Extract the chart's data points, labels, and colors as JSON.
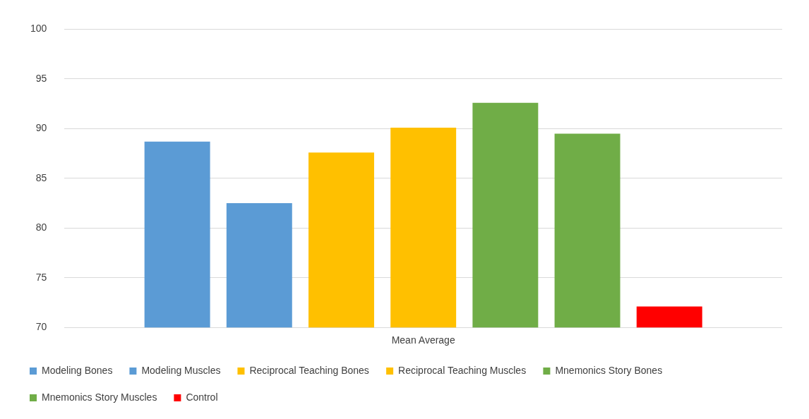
{
  "chart_data": {
    "type": "bar",
    "categories": [
      "Mean Average"
    ],
    "series": [
      {
        "name": "Modeling Bones",
        "color": "#5b9bd5",
        "values": [
          88.7
        ]
      },
      {
        "name": "Modeling Muscles",
        "color": "#5b9bd5",
        "values": [
          82.5
        ]
      },
      {
        "name": "Reciprocal Teaching Bones",
        "color": "#ffc000",
        "values": [
          87.6
        ]
      },
      {
        "name": "Reciprocal Teaching Muscles",
        "color": "#ffc000",
        "values": [
          90.1
        ]
      },
      {
        "name": "Mnemonics Story Bones",
        "color": "#70ad47",
        "values": [
          92.6
        ]
      },
      {
        "name": "Mnemonics Story Muscles",
        "color": "#70ad47",
        "values": [
          89.5
        ]
      },
      {
        "name": "Control",
        "color": "#ff0000",
        "values": [
          72.1
        ]
      }
    ],
    "ylim": [
      70,
      100
    ],
    "yticks": [
      70,
      75,
      80,
      85,
      90,
      95,
      100
    ],
    "grid": "y",
    "legend": "bottom"
  }
}
